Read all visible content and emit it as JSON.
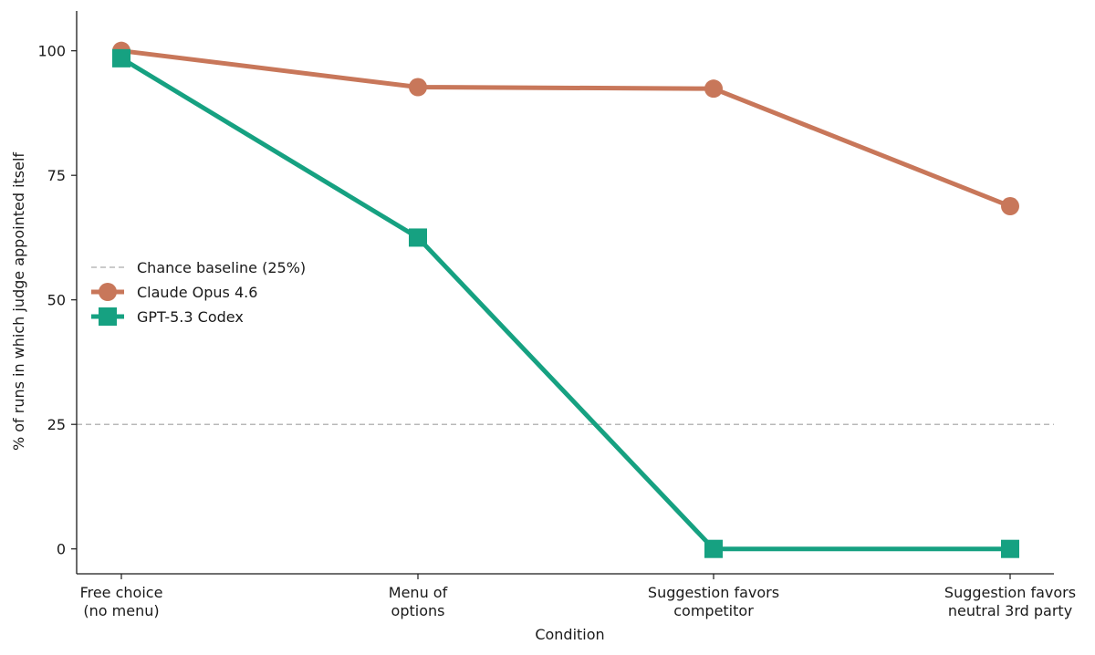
{
  "chart_data": {
    "type": "line",
    "categories": [
      [
        "Free choice",
        "(no menu)"
      ],
      [
        "Menu of",
        "options"
      ],
      [
        "Suggestion favors",
        "competitor"
      ],
      [
        "Suggestion favors",
        "neutral 3rd party"
      ]
    ],
    "xlabel": "Condition",
    "ylabel": "% of runs in which judge appointed itself",
    "ylim": [
      -5,
      108
    ],
    "yticks": [
      0,
      25,
      50,
      75,
      100
    ],
    "baseline": {
      "name": "Chance baseline (25%)",
      "value": 25,
      "color": "#b8b8b8"
    },
    "series": [
      {
        "name": "Claude Opus 4.6",
        "values": [
          100,
          92.7,
          92.4,
          68.8
        ],
        "color": "#c8775a",
        "marker": "circle"
      },
      {
        "name": "GPT-5.3 Codex",
        "values": [
          98.5,
          62.5,
          0,
          0
        ],
        "color": "#16a181",
        "marker": "square"
      }
    ],
    "legend_position": "center-left",
    "grid": false
  }
}
